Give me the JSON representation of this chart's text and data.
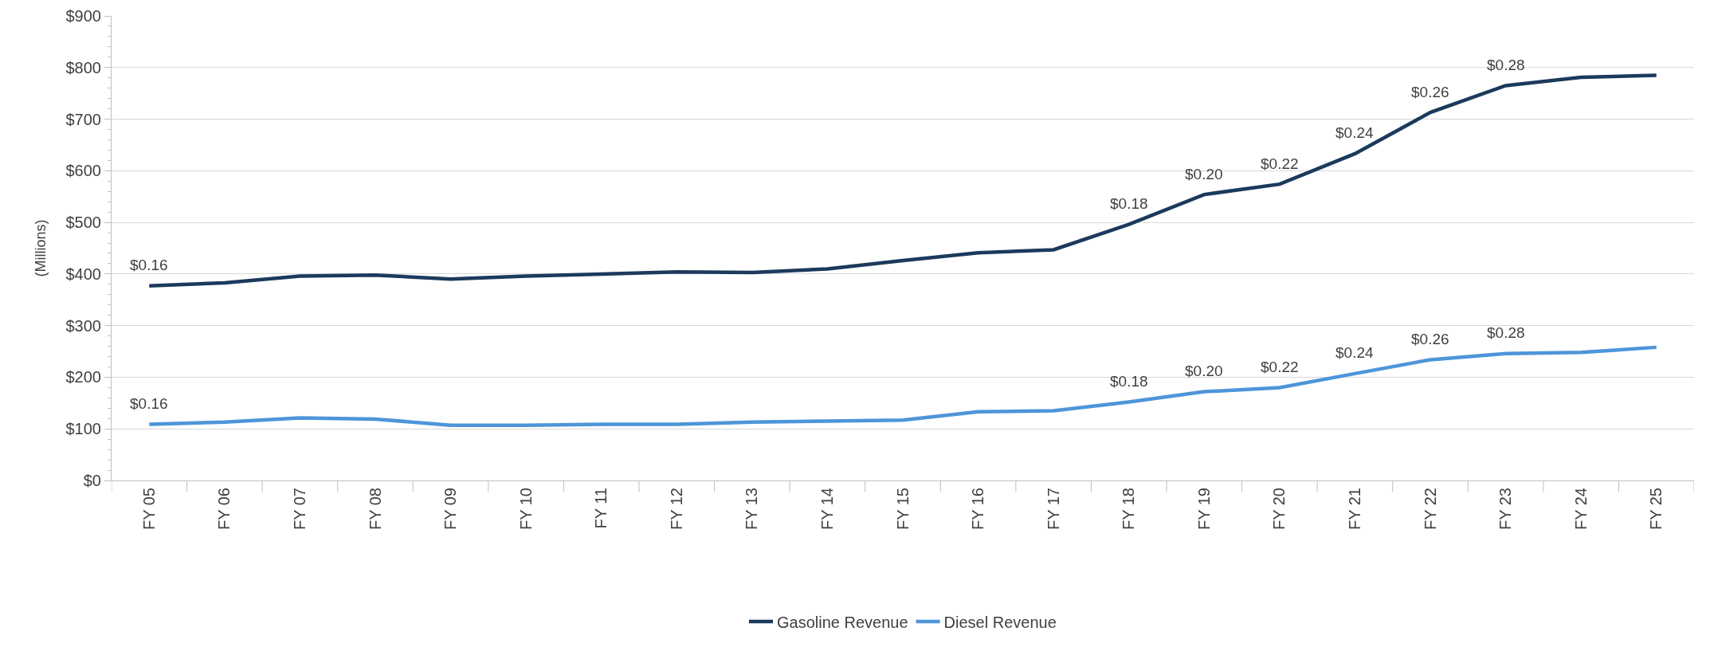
{
  "chart_data": {
    "type": "line",
    "ylabel": "(Millions)",
    "categories": [
      "FY 05",
      "FY 06",
      "FY 07",
      "FY 08",
      "FY 09",
      "FY 10",
      "FY 11",
      "FY 12",
      "FY 13",
      "FY 14",
      "FY 15",
      "FY 16",
      "FY 17",
      "FY 18",
      "FY 19",
      "FY 20",
      "FY 21",
      "FY 22",
      "FY 23",
      "FY 24",
      "FY 25"
    ],
    "series": [
      {
        "name": "Gasoline Revenue",
        "color": "#1b3a5c",
        "values": [
          377,
          383,
          396,
          398,
          390,
          396,
          400,
          404,
          403,
          410,
          426,
          441,
          447,
          496,
          554,
          574,
          633,
          713,
          765,
          781,
          785
        ]
      },
      {
        "name": "Diesel Revenue",
        "color": "#4e95d9",
        "values": [
          109,
          113,
          121,
          119,
          107,
          107,
          109,
          109,
          113,
          115,
          117,
          133,
          135,
          152,
          172,
          180,
          207,
          234,
          246,
          248,
          258
        ]
      }
    ],
    "ylim": [
      0,
      900
    ],
    "yticks": [
      {
        "value": 0,
        "label": "$0"
      },
      {
        "value": 100,
        "label": "$100"
      },
      {
        "value": 200,
        "label": "$200"
      },
      {
        "value": 300,
        "label": "$300"
      },
      {
        "value": 400,
        "label": "$400"
      },
      {
        "value": 500,
        "label": "$500"
      },
      {
        "value": 600,
        "label": "$600"
      },
      {
        "value": 700,
        "label": "$700"
      },
      {
        "value": 800,
        "label": "$800"
      },
      {
        "value": 900,
        "label": "$900"
      }
    ],
    "grid": "y",
    "legend": "bottom",
    "marker": "none",
    "line_style": "solid",
    "annotations": [
      {
        "text": "$0.16",
        "x": "FY 05",
        "y": 377
      },
      {
        "text": "$0.18",
        "x": "FY 18",
        "y": 496
      },
      {
        "text": "$0.20",
        "x": "FY 19",
        "y": 554
      },
      {
        "text": "$0.22",
        "x": "FY 20",
        "y": 574
      },
      {
        "text": "$0.24",
        "x": "FY 21",
        "y": 633
      },
      {
        "text": "$0.26",
        "x": "FY 22",
        "y": 713
      },
      {
        "text": "$0.28",
        "x": "FY 23",
        "y": 765
      },
      {
        "text": "$0.16",
        "x": "FY 05",
        "y": 109
      },
      {
        "text": "$0.18",
        "x": "FY 18",
        "y": 152
      },
      {
        "text": "$0.20",
        "x": "FY 19",
        "y": 172
      },
      {
        "text": "$0.22",
        "x": "FY 20",
        "y": 180
      },
      {
        "text": "$0.24",
        "x": "FY 21",
        "y": 207
      },
      {
        "text": "$0.26",
        "x": "FY 22",
        "y": 234
      },
      {
        "text": "$0.28",
        "x": "FY 23",
        "y": 246
      }
    ]
  }
}
